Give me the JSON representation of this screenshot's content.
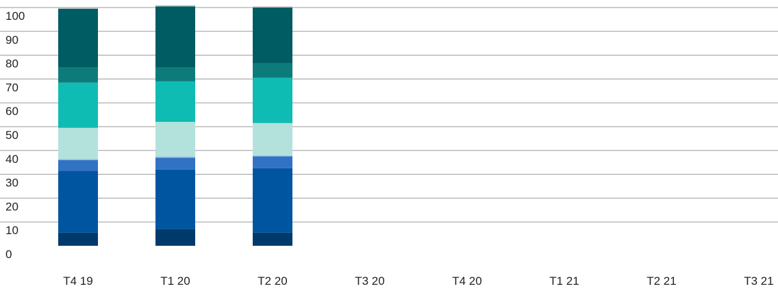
{
  "chart_data": {
    "type": "bar",
    "stacked": true,
    "categories": [
      "T4 19",
      "T1 20",
      "T2 20",
      "T3 20",
      "T4 20",
      "T1 21",
      "T2 21",
      "T3 21"
    ],
    "ylim": [
      0,
      100
    ],
    "y_ticks": [
      0,
      10,
      20,
      30,
      40,
      50,
      60,
      70,
      80,
      90,
      100
    ],
    "grid": true,
    "title": "",
    "xlabel": "",
    "ylabel": "",
    "series": [
      {
        "color": "#003a6b",
        "values": [
          5.5,
          7,
          5.5,
          null,
          null,
          null,
          null,
          null
        ]
      },
      {
        "color": "#0055a0",
        "values": [
          26,
          25,
          27,
          null,
          null,
          null,
          null,
          null
        ]
      },
      {
        "color": "#3272c4",
        "values": [
          4.5,
          5,
          5,
          null,
          null,
          null,
          null,
          null
        ]
      },
      {
        "color": "#9ec9e6",
        "values": [
          0.5,
          0.5,
          0.5,
          null,
          null,
          null,
          null,
          null
        ]
      },
      {
        "color": "#b3e2dc",
        "values": [
          13,
          14.5,
          13.5,
          null,
          null,
          null,
          null,
          null
        ]
      },
      {
        "color": "#0fbcb3",
        "values": [
          19,
          17,
          19,
          null,
          null,
          null,
          null,
          null
        ]
      },
      {
        "color": "#0e7b7b",
        "values": [
          6.5,
          6,
          6,
          null,
          null,
          null,
          null,
          null
        ]
      },
      {
        "color": "#005c63",
        "values": [
          24.5,
          25.5,
          23.5,
          null,
          null,
          null,
          null,
          null
        ]
      },
      {
        "color": "#c4c4c4",
        "values": [
          0.5,
          0.5,
          0.5,
          null,
          null,
          null,
          null,
          null
        ]
      }
    ]
  }
}
